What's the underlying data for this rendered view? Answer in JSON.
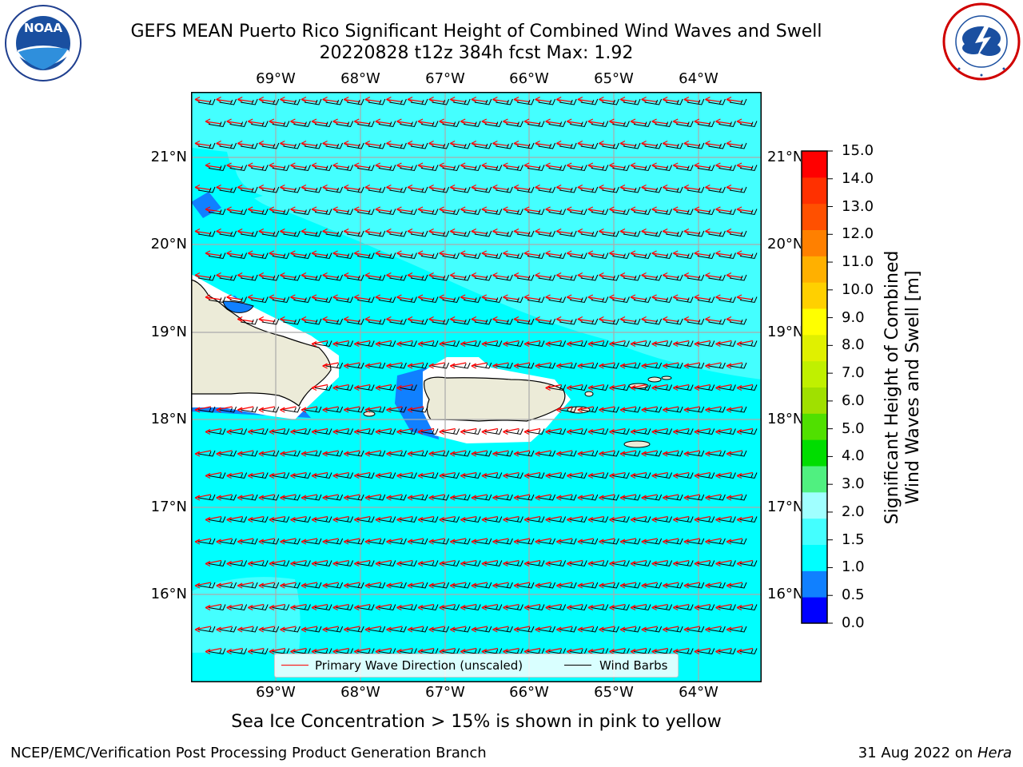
{
  "title": {
    "line1": "GEFS MEAN Puerto Rico Significant Height of Combined Wind Waves and Swell",
    "line2": "20220828 t12z 384h fcst   Max: 1.92"
  },
  "logos": {
    "noaa_text": "NOAA",
    "noaa_ring_text": "NATIONAL OCEANIC AND ATMOSPHERIC ADMINISTRATION · U.S. DEPARTMENT OF COMMERCE",
    "nws_ring_text": "NATIONAL WEATHER SERVICE"
  },
  "map": {
    "lon_ticks": [
      "69°W",
      "68°W",
      "67°W",
      "66°W",
      "65°W",
      "64°W"
    ],
    "lat_ticks": [
      "21°N",
      "20°N",
      "19°N",
      "18°N",
      "17°N",
      "16°N"
    ],
    "colors": {
      "ocean_main": "#00ffff",
      "ocean_light": "#44ffff",
      "ocean_lighter": "#a0ffff",
      "shallow": "#1080ff",
      "land": "#ecebd8",
      "coast": "#000000",
      "wave_arrow": "#ff0000",
      "wind_barb": "#000000"
    }
  },
  "colorbar": {
    "label_line1": "Significant Height of Combined",
    "label_line2": "Wind Waves and Swell [m]",
    "ticks": [
      "15.0",
      "14.0",
      "13.0",
      "12.0",
      "11.0",
      "10.0",
      "9.0",
      "8.0",
      "7.0",
      "6.0",
      "5.0",
      "4.0",
      "3.0",
      "2.0",
      "1.5",
      "1.0",
      "0.5",
      "0.0"
    ],
    "segments": [
      "#0000ff",
      "#1080ff",
      "#00ffff",
      "#44ffff",
      "#a0ffff",
      "#50f080",
      "#00dd00",
      "#50e000",
      "#a0e000",
      "#c0f000",
      "#e0f000",
      "#ffff00",
      "#ffd000",
      "#ffb000",
      "#ff8000",
      "#ff5000",
      "#ff3000",
      "#ff0000"
    ]
  },
  "legend": {
    "wave_label": "Primary Wave Direction (unscaled)",
    "barb_label": "Wind Barbs"
  },
  "subtitle": "Sea Ice Concentration > 15% is shown in pink to yellow",
  "footer": {
    "left": "NCEP/EMC/Verification Post Processing Product Generation Branch",
    "right_date": "31 Aug 2022 on ",
    "right_host": "Hera"
  }
}
